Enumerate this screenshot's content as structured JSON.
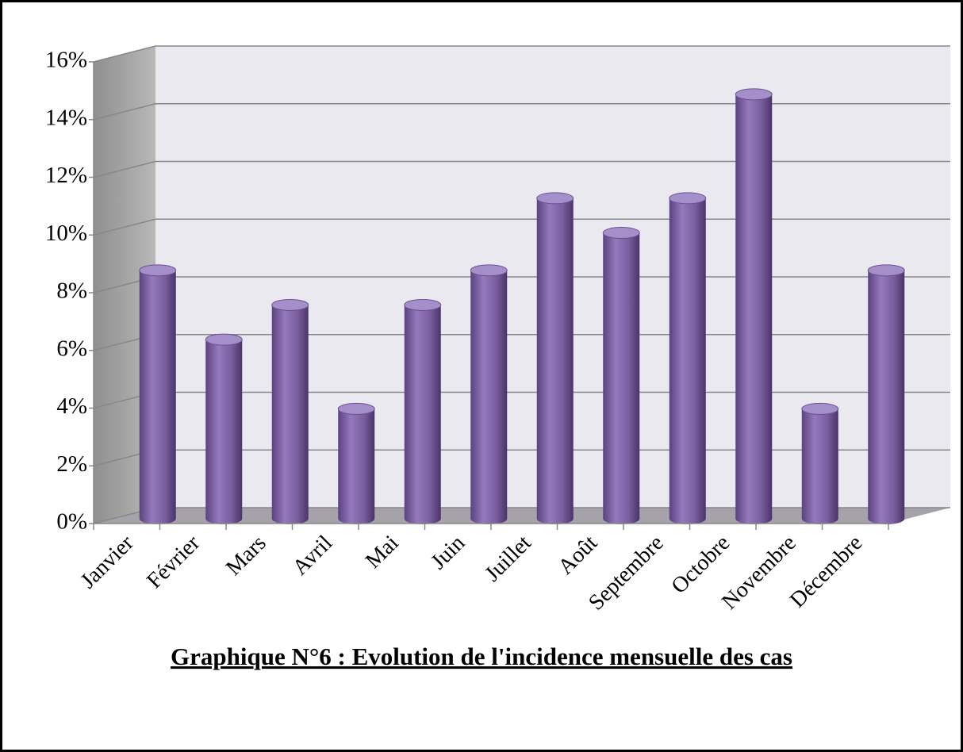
{
  "chart_data": {
    "type": "bar3d",
    "title": "Graphique N°6 : Evolution de l'incidence mensuelle des cas",
    "categories": [
      "Janvier",
      "Février",
      "Mars",
      "Avril",
      "Mai",
      "Juin",
      "Juillet",
      "Août",
      "Septembre",
      "Octobre",
      "Novembre",
      "Décembre"
    ],
    "values": [
      8.5,
      6.1,
      7.3,
      3.7,
      7.3,
      8.5,
      11,
      9.8,
      11,
      14.6,
      3.7,
      8.5
    ],
    "color": "#8064a2",
    "ylim": [
      0,
      16
    ],
    "yticks": [
      {
        "value": 0,
        "label": "0%"
      },
      {
        "value": 2,
        "label": "2%"
      },
      {
        "value": 4,
        "label": "4%"
      },
      {
        "value": 6,
        "label": "6%"
      },
      {
        "value": 8,
        "label": "8%"
      },
      {
        "value": 10,
        "label": "10%"
      },
      {
        "value": 12,
        "label": "12%"
      },
      {
        "value": 14,
        "label": "14%"
      },
      {
        "value": 16,
        "label": "16%"
      }
    ],
    "grid": true
  }
}
